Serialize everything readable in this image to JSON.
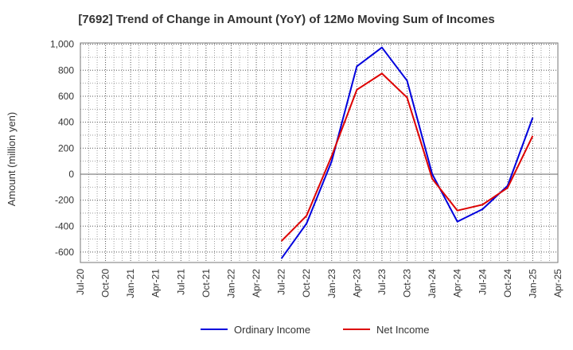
{
  "chart_data": {
    "type": "line",
    "title": "[7692]  Trend of Change in Amount (YoY) of 12Mo Moving Sum of Incomes",
    "ylabel": "Amount (million yen)",
    "xlabel": "",
    "ylim": [
      -680,
      1010
    ],
    "yticks": [
      -600,
      -400,
      -200,
      0,
      200,
      400,
      600,
      800,
      1000
    ],
    "ytick_labels": [
      "-600",
      "-400",
      "-200",
      "0",
      "200",
      "400",
      "600",
      "800",
      "1,000"
    ],
    "x_categories": [
      "Jul-20",
      "Oct-20",
      "Jan-21",
      "Apr-21",
      "Jul-21",
      "Oct-21",
      "Jan-22",
      "Apr-22",
      "Jul-22",
      "Oct-22",
      "Jan-23",
      "Apr-23",
      "Jul-23",
      "Oct-23",
      "Jan-24",
      "Apr-24",
      "Jul-24",
      "Oct-24",
      "Jan-25",
      "Apr-25"
    ],
    "grid": true,
    "legend_position": "bottom",
    "series": [
      {
        "name": "Ordinary Income",
        "color": "#0000dd",
        "values": [
          null,
          null,
          null,
          null,
          null,
          null,
          null,
          null,
          -650,
          -380,
          100,
          830,
          975,
          720,
          0,
          -365,
          -270,
          -90,
          435,
          null
        ]
      },
      {
        "name": "Net Income",
        "color": "#dd0000",
        "values": [
          null,
          null,
          null,
          null,
          null,
          null,
          null,
          null,
          -515,
          -320,
          140,
          650,
          775,
          590,
          -35,
          -280,
          -235,
          -105,
          295,
          null
        ]
      }
    ]
  }
}
